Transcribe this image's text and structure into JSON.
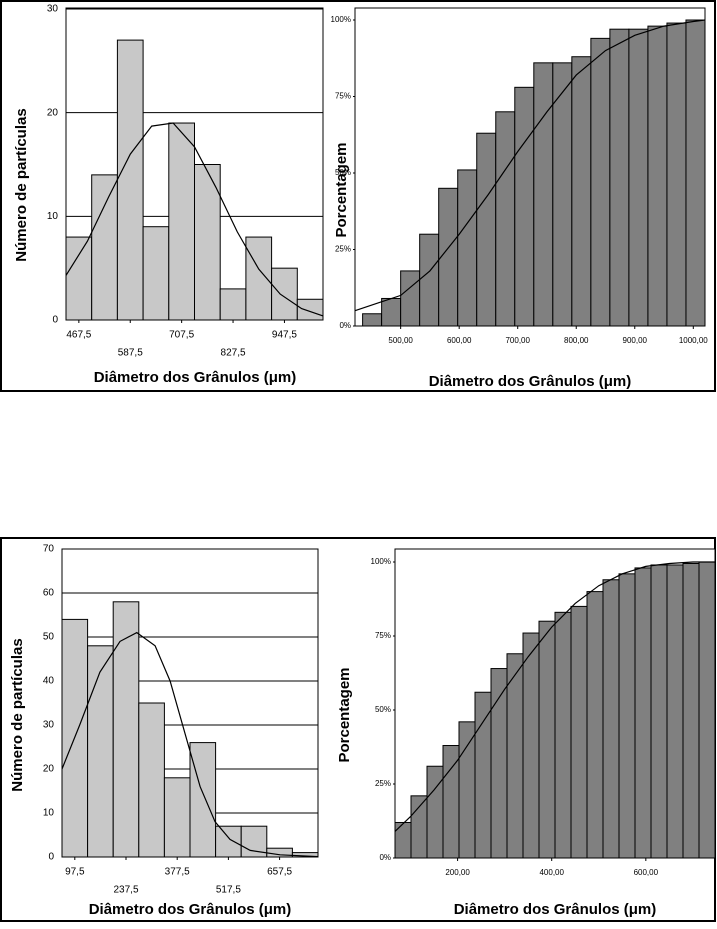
{
  "chart_data": [
    {
      "type": "histogram",
      "xlabel": "Diâmetro dos Grânulos (μm)",
      "ylabel": "Número de partículas",
      "bins": [
        437.5,
        497.5,
        557.5,
        617.5,
        677.5,
        737.5,
        797.5,
        857.5,
        917.5,
        977.5,
        1037.5
      ],
      "values": [
        8,
        14,
        27,
        9,
        19,
        15,
        3,
        8,
        5,
        2
      ],
      "color": "#c8c8c8",
      "xlim": [
        437.5,
        1037.5
      ],
      "ylim": [
        0,
        30
      ],
      "xticks": [
        {
          "value": 467.5,
          "label": "467,5"
        },
        {
          "value": 587.5,
          "label": "587,5"
        },
        {
          "value": 707.5,
          "label": "707,5"
        },
        {
          "value": 827.5,
          "label": "827,5"
        },
        {
          "value": 947.5,
          "label": "947,5"
        }
      ],
      "yticks": [
        0,
        10,
        20,
        30
      ],
      "grid": true,
      "curve": {
        "color": "#000000",
        "x": [
          437.5,
          487.5,
          537.5,
          587.5,
          637.5,
          687.5,
          737.5,
          787.5,
          837.5,
          887.5,
          937.5,
          987.5,
          1037.5
        ],
        "values": [
          4.3,
          7.6,
          11.9,
          16.0,
          18.7,
          19.0,
          16.7,
          12.8,
          8.5,
          4.9,
          2.5,
          1.1,
          0.4
        ]
      }
    },
    {
      "type": "histogram",
      "xlabel": "Diâmetro dos Grânulos (μm)",
      "ylabel": "Porcentagem",
      "bins": [
        435,
        467.5,
        500,
        532.5,
        565,
        597.5,
        630,
        662.5,
        695,
        727.5,
        760,
        792.5,
        825,
        857.5,
        890,
        922.5,
        955,
        987.5,
        1020
      ],
      "values": [
        4,
        9,
        18,
        30,
        45,
        51,
        63,
        70,
        78,
        86,
        86,
        88,
        94,
        97,
        97,
        98,
        99,
        100
      ],
      "color": "#808080",
      "xlim": [
        422,
        1020
      ],
      "ylim": [
        0,
        100
      ],
      "xticks": [
        {
          "value": 500,
          "label": "500,00"
        },
        {
          "value": 600,
          "label": "600,00"
        },
        {
          "value": 700,
          "label": "700,00"
        },
        {
          "value": 800,
          "label": "800,00"
        },
        {
          "value": 900,
          "label": "900,00"
        },
        {
          "value": 1000,
          "label": "1000,00"
        }
      ],
      "yticks": [
        {
          "value": 0,
          "label": "0%"
        },
        {
          "value": 25,
          "label": "25%"
        },
        {
          "value": 50,
          "label": "50%"
        },
        {
          "value": 75,
          "label": "75%"
        },
        {
          "value": 100,
          "label": "100%"
        }
      ],
      "grid": false,
      "curve": {
        "color": "#000000",
        "x": [
          422,
          500,
          550,
          600,
          650,
          700,
          750,
          800,
          850,
          900,
          950,
          1000,
          1020
        ],
        "values": [
          5,
          10,
          18,
          30,
          43,
          57,
          70,
          82,
          90,
          95,
          98,
          99.5,
          100
        ]
      }
    },
    {
      "type": "histogram",
      "xlabel": "Diâmetro dos Grânulos (μm)",
      "ylabel": "Número de partículas",
      "bins": [
        62.5,
        132.5,
        202.5,
        272.5,
        342.5,
        412.5,
        482.5,
        552.5,
        622.5,
        692.5,
        762.5
      ],
      "values": [
        54,
        48,
        58,
        35,
        18,
        26,
        7,
        7,
        2,
        1
      ],
      "color": "#c8c8c8",
      "xlim": [
        62.5,
        762.5
      ],
      "ylim": [
        0,
        70
      ],
      "xticks": [
        {
          "value": 97.5,
          "label": "97,5"
        },
        {
          "value": 237.5,
          "label": "237,5"
        },
        {
          "value": 377.5,
          "label": "377,5"
        },
        {
          "value": 517.5,
          "label": "517,5"
        },
        {
          "value": 657.5,
          "label": "657,5"
        }
      ],
      "yticks": [
        0,
        10,
        20,
        30,
        40,
        50,
        60,
        70
      ],
      "grid": true,
      "curve": {
        "color": "#000000",
        "x": [
          62.5,
          111,
          166,
          221,
          267,
          317,
          358,
          399,
          440,
          481,
          522,
          577,
          659,
          762.5
        ],
        "values": [
          20,
          30,
          42,
          49,
          51,
          48,
          40,
          28,
          16,
          8,
          4,
          1.5,
          0.5,
          0.1
        ]
      }
    },
    {
      "type": "histogram",
      "xlabel": "Diâmetro dos Grânulos (μm)",
      "ylabel": "Porcentagem",
      "bins": [
        67,
        101,
        135,
        169,
        203,
        237,
        271,
        305,
        339,
        373,
        407,
        441,
        475,
        509,
        543,
        577,
        611,
        645,
        679,
        713,
        747
      ],
      "values": [
        12,
        21,
        31,
        38,
        46,
        56,
        64,
        69,
        76,
        80,
        83,
        85,
        90,
        94,
        96,
        98,
        99,
        99,
        99.5,
        100
      ],
      "color": "#808080",
      "xlim": [
        67,
        747
      ],
      "ylim": [
        0,
        100
      ],
      "xticks": [
        {
          "value": 200,
          "label": "200,00"
        },
        {
          "value": 400,
          "label": "400,00"
        },
        {
          "value": 600,
          "label": "600,00"
        }
      ],
      "yticks": [
        {
          "value": 0,
          "label": "0%"
        },
        {
          "value": 25,
          "label": "25%"
        },
        {
          "value": 50,
          "label": "50%"
        },
        {
          "value": 75,
          "label": "75%"
        },
        {
          "value": 100,
          "label": "100%"
        }
      ],
      "grid": false,
      "curve": {
        "color": "#000000",
        "x": [
          67,
          100,
          150,
          200,
          250,
          300,
          350,
          400,
          450,
          500,
          550,
          600,
          650,
          700,
          747
        ],
        "values": [
          9,
          14,
          23,
          33,
          45,
          57,
          68,
          78,
          86,
          92,
          96,
          98.5,
          99.5,
          100,
          100
        ]
      }
    }
  ]
}
